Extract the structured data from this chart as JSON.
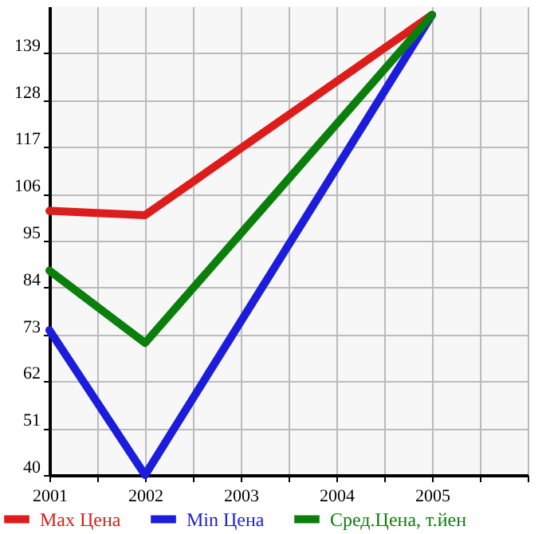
{
  "chart_data": {
    "type": "line",
    "x": [
      2001,
      2002,
      2005
    ],
    "series": [
      {
        "name": "Max Цена",
        "color": "#dd1c1c",
        "values": [
          102,
          101,
          148
        ]
      },
      {
        "name": "Min Цена",
        "color": "#1c1cdd",
        "values": [
          74,
          40,
          148
        ]
      },
      {
        "name": "Сред.Цена, т.йен",
        "color": "#0b7f0b",
        "values": [
          88,
          71,
          148
        ]
      }
    ],
    "xlim": [
      2001,
      2006
    ],
    "xticks": [
      2001,
      {
        "value": 2001.5,
        "label": null
      },
      2002,
      {
        "value": 2002.5,
        "label": null
      },
      2003,
      {
        "value": 2003.5,
        "label": null
      },
      2004,
      {
        "value": 2004.5,
        "label": null
      },
      2005,
      {
        "value": 2005.5,
        "label": null
      },
      {
        "value": 2006,
        "label": null
      }
    ],
    "ylim": [
      40,
      150
    ],
    "yticks": [
      40,
      51,
      62,
      73,
      84,
      95,
      106,
      117,
      128,
      139
    ],
    "grid": true,
    "legend": "bottom",
    "marker": "none",
    "line_style": "solid"
  }
}
